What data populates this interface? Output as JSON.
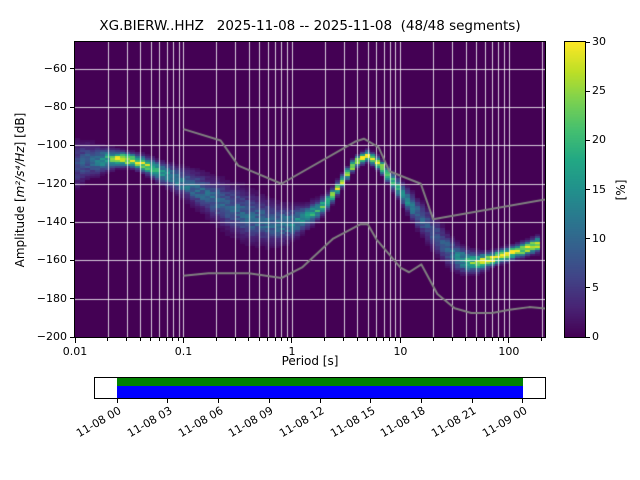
{
  "title": "XG.BIERW..HHZ   2025-11-08 -- 2025-11-08  (48/48 segments)",
  "axes": {
    "xlabel": "Period [s]",
    "ylabel_prefix": "Amplitude [",
    "ylabel_math": "m²/s⁴/Hz",
    "ylabel_suffix": "] [dB]",
    "x_ticks": [
      {
        "value": 0.01,
        "label": "0.01"
      },
      {
        "value": 0.1,
        "label": "0.1"
      },
      {
        "value": 1,
        "label": "1"
      },
      {
        "value": 10,
        "label": "10"
      },
      {
        "value": 100,
        "label": "100"
      }
    ],
    "y_ticks": [
      -60,
      -80,
      -100,
      -120,
      -140,
      -160,
      -180,
      -200
    ]
  },
  "colorbar": {
    "label": "[%]",
    "ticks": [
      0,
      5,
      10,
      15,
      20,
      25,
      30
    ],
    "min": 0,
    "max": 30,
    "colormap_stops": [
      "#440154",
      "#482475",
      "#414487",
      "#355f8d",
      "#2a788e",
      "#21918c",
      "#22a884",
      "#44bf70",
      "#7ad151",
      "#bddf26",
      "#fde725"
    ]
  },
  "timeline": {
    "tick_labels": [
      "11-08 00",
      "11-08 03",
      "11-08 06",
      "11-08 09",
      "11-08 12",
      "11-08 15",
      "11-08 18",
      "11-08 21",
      "11-09 00"
    ],
    "coverage": {
      "start_frac": 0.049,
      "end_frac": 0.951
    },
    "colors": {
      "used": "#008000",
      "data": "#0000ff"
    }
  },
  "colors": {
    "figure_bg": "#ffffff",
    "plot_bg": "#440154",
    "grid": "rgba(255,255,255,0.8)",
    "noise_model_line": "#808080",
    "text": "#000000"
  },
  "chart_data": {
    "type": "heatmap",
    "title": "XG.BIERW..HHZ   2025-11-08 -- 2025-11-08  (48/48 segments)",
    "station": "XG.BIERW..HHZ",
    "date_range": "2025-11-08 -- 2025-11-08",
    "segments_used": 48,
    "segments_total": 48,
    "xlabel": "Period [s]",
    "ylabel": "Amplitude [m²/s⁴/Hz] [dB]",
    "colorbar_label": "[%]",
    "x_scale": "log",
    "xlim": [
      0.01,
      215
    ],
    "ylim": [
      -200,
      -46
    ],
    "probability_range_pct": [
      0,
      30
    ],
    "psd_mode_curve": {
      "periods_s": [
        0.01,
        0.013,
        0.016,
        0.02,
        0.025,
        0.032,
        0.04,
        0.05,
        0.065,
        0.085,
        0.11,
        0.14,
        0.18,
        0.24,
        0.32,
        0.42,
        0.56,
        0.75,
        1.0,
        1.3,
        1.7,
        2.2,
        2.9,
        3.8,
        5.0,
        6.5,
        8.5,
        11,
        14,
        18,
        24,
        31,
        40,
        52,
        68,
        88,
        115,
        150,
        190
      ],
      "db": [
        -110,
        -108,
        -108,
        -107.5,
        -107,
        -107.5,
        -109,
        -111.5,
        -114.5,
        -117.5,
        -120.5,
        -123.5,
        -127,
        -131,
        -134.5,
        -137.5,
        -139.5,
        -141,
        -140.5,
        -138,
        -134,
        -128.5,
        -119,
        -109,
        -105.5,
        -110,
        -119,
        -127,
        -135,
        -142,
        -151,
        -157.5,
        -160.5,
        -161,
        -159.5,
        -157.5,
        -155.5,
        -153.5,
        -151.5
      ],
      "spread_db": [
        7,
        5,
        4,
        3,
        2.2,
        2,
        2.2,
        2.6,
        3,
        3.6,
        4.4,
        5.2,
        6,
        6.8,
        7.2,
        7,
        6.4,
        5.6,
        4.6,
        3.6,
        2.8,
        2.2,
        1.8,
        1.6,
        1.6,
        1.8,
        2.4,
        3.2,
        4.2,
        5,
        5,
        4.2,
        3.4,
        2.6,
        2,
        1.9,
        1.9,
        2,
        2.2
      ],
      "peak_probability_pct": [
        7,
        9,
        12,
        18,
        26,
        30,
        28,
        22,
        17,
        13,
        11,
        10,
        9.5,
        9,
        9,
        9.5,
        10,
        11,
        12.5,
        15,
        18,
        22,
        27,
        30,
        30,
        28,
        22,
        15,
        10,
        8,
        8,
        11,
        17,
        25,
        29,
        30,
        30,
        29,
        27
      ]
    },
    "noise_models": {
      "high_noise_model": {
        "periods_s": [
          0.1,
          0.22,
          0.32,
          0.8,
          3.8,
          4.6,
          6.3,
          7.9,
          15.4,
          20.0,
          354.8
        ],
        "db": [
          -91.5,
          -97.4,
          -110.5,
          -120.0,
          -98.1,
          -96.5,
          -101.0,
          -113.5,
          -120.0,
          -138.5,
          -126.0
        ]
      },
      "low_noise_model": {
        "periods_s": [
          0.1,
          0.17,
          0.4,
          0.8,
          1.24,
          2.4,
          4.3,
          5.0,
          6.0,
          10.0,
          12.0,
          15.6,
          21.9,
          31.6,
          45.0,
          70.0,
          101.0,
          154.0,
          328.0
        ],
        "db": [
          -168.0,
          -166.7,
          -166.7,
          -169.2,
          -163.7,
          -148.6,
          -141.1,
          -141.1,
          -149.0,
          -163.8,
          -166.2,
          -162.1,
          -177.5,
          -185.0,
          -187.5,
          -187.5,
          -185.8,
          -184.4,
          -186.0
        ]
      }
    }
  }
}
